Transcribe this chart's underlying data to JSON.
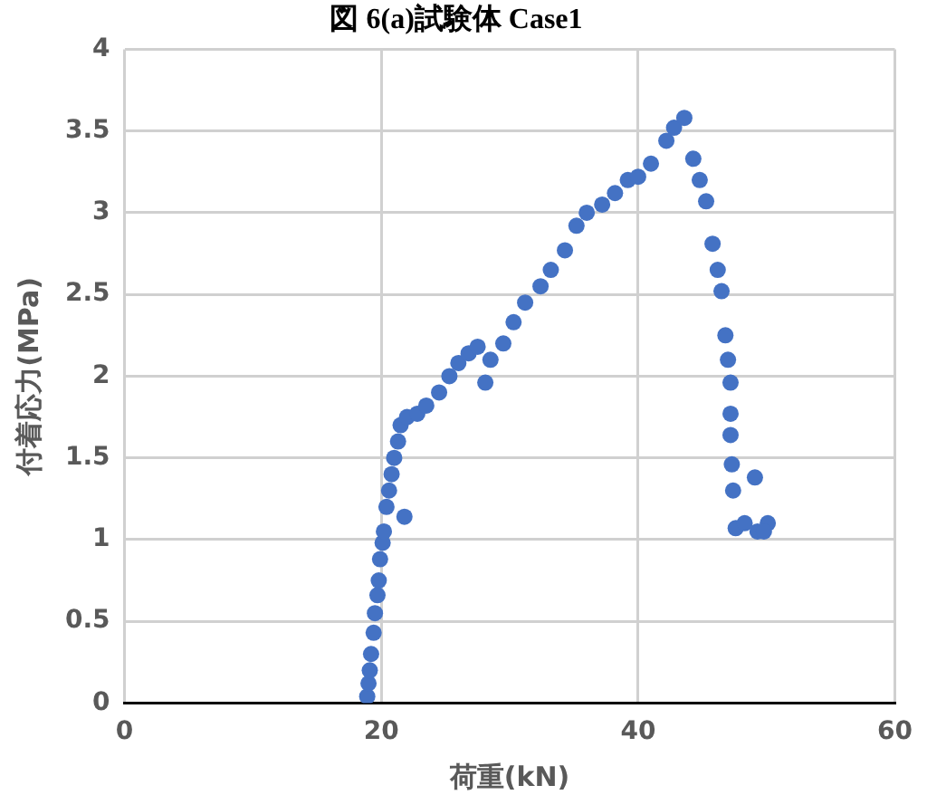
{
  "chart_data": {
    "type": "scatter",
    "title": "図 6(a)試験体 Case1",
    "xlabel": "荷重(kN)",
    "ylabel": "付着応力(MPa)",
    "xlim": [
      0,
      60
    ],
    "xticks": [
      0,
      20,
      40,
      60
    ],
    "ylim": [
      0,
      4
    ],
    "yticks": [
      0,
      0.5,
      1,
      1.5,
      2,
      2.5,
      3,
      3.5,
      4
    ],
    "grid": true,
    "marker": "circle",
    "series": [
      {
        "color": "#4472c4",
        "x": [
          18.9,
          19.0,
          19.1,
          19.2,
          19.4,
          19.5,
          19.7,
          19.8,
          19.9,
          20.1,
          20.2,
          20.4,
          20.6,
          20.8,
          21.0,
          21.3,
          21.8,
          21.5,
          22.0,
          22.8,
          23.5,
          24.5,
          25.3,
          26.0,
          26.8,
          27.5,
          28.1,
          28.5,
          29.5,
          30.3,
          31.2,
          32.4,
          33.2,
          34.3,
          35.2,
          36.0,
          37.2,
          38.2,
          39.2,
          40.0,
          41.0,
          42.2,
          42.8,
          43.6,
          44.3,
          44.8,
          45.3,
          45.8,
          46.2,
          46.5,
          46.8,
          47.0,
          47.2,
          47.2,
          47.2,
          47.3,
          47.4,
          47.6,
          48.3,
          49.1,
          49.3,
          50.1,
          49.8
        ],
        "values": [
          0.04,
          0.12,
          0.2,
          0.3,
          0.43,
          0.55,
          0.66,
          0.75,
          0.88,
          0.98,
          1.05,
          1.2,
          1.3,
          1.4,
          1.5,
          1.6,
          1.14,
          1.7,
          1.75,
          1.77,
          1.82,
          1.9,
          2.0,
          2.08,
          2.14,
          2.18,
          1.96,
          2.1,
          2.2,
          2.33,
          2.45,
          2.55,
          2.65,
          2.77,
          2.92,
          3.0,
          3.05,
          3.12,
          3.2,
          3.22,
          3.3,
          3.44,
          3.52,
          3.58,
          3.33,
          3.2,
          3.07,
          2.81,
          2.65,
          2.52,
          2.25,
          2.1,
          1.96,
          1.77,
          1.64,
          1.46,
          1.3,
          1.07,
          1.1,
          1.38,
          1.05,
          1.1,
          1.05
        ]
      }
    ]
  }
}
